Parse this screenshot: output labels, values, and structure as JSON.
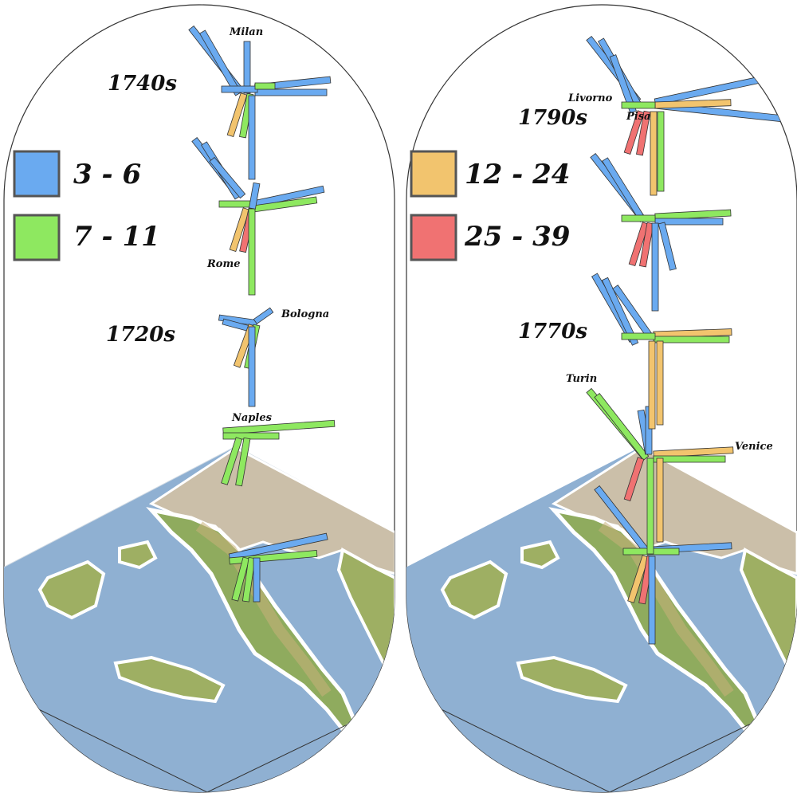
{
  "legend": {
    "items": [
      {
        "label": "3 - 6",
        "color": "#6aaaf0"
      },
      {
        "label": "7 - 11",
        "color": "#8ee860"
      },
      {
        "label": "12 - 24",
        "color": "#f2c46e"
      },
      {
        "label": "25 - 39",
        "color": "#f07272"
      }
    ]
  },
  "decades": {
    "d1740": "1740s",
    "d1720": "1720s",
    "d1790": "1790s",
    "d1770": "1770s"
  },
  "cities": {
    "milan": "Milan",
    "rome": "Rome",
    "bologna": "Bologna",
    "naples": "Naples",
    "livorno": "Livorno",
    "pisa": "Pisa",
    "turin": "Turin",
    "venice": "Venice"
  },
  "colors": {
    "sea": "#8fb0d2",
    "coast_glow": "#ffffff",
    "land_low": "#6f9c4e",
    "land_mid": "#b9b06a",
    "land_high": "#d9c8b8",
    "outline": "#222222"
  }
}
